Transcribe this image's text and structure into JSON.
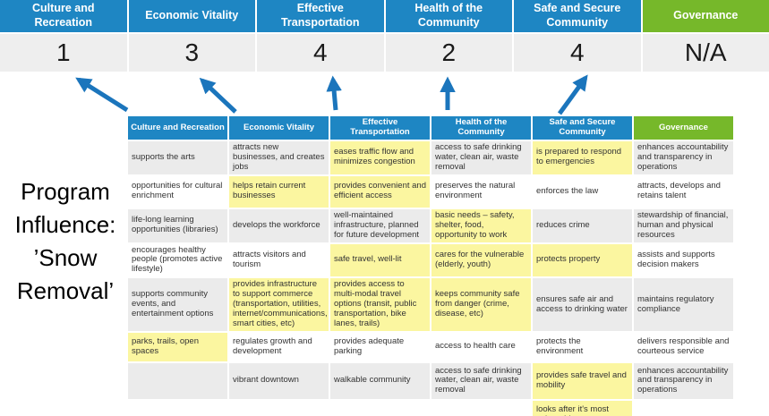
{
  "colors": {
    "header_blue": "#1e86c3",
    "header_green": "#76b82a",
    "arrow_blue": "#1b75bc",
    "highlight_yellow": "#fbf6a0",
    "row_band_gray": "#ebebeb",
    "score_bg": "#eeeeee"
  },
  "title": {
    "lines": [
      "Program",
      "Influence:",
      "’Snow",
      "Removal’"
    ]
  },
  "summary": {
    "columns": [
      {
        "id": "culture-and-recreation",
        "label": "Culture and Recreation",
        "score": "1",
        "theme": "blue"
      },
      {
        "id": "economic-vitality",
        "label": "Economic Vitality",
        "score": "3",
        "theme": "blue"
      },
      {
        "id": "effective-transportation",
        "label": "Effective Transportation",
        "score": "4",
        "theme": "blue"
      },
      {
        "id": "health-of-the-community",
        "label": "Health of the Community",
        "score": "2",
        "theme": "blue"
      },
      {
        "id": "safe-and-secure-community",
        "label": "Safe and Secure Community",
        "score": "4",
        "theme": "blue"
      },
      {
        "id": "governance",
        "label": "Governance",
        "score": "N/A",
        "theme": "green"
      }
    ]
  },
  "matrix": {
    "headers": [
      {
        "id": "culture-and-recreation",
        "label": "Culture and Recreation",
        "theme": "blue"
      },
      {
        "id": "economic-vitality",
        "label": "Economic Vitality",
        "theme": "blue"
      },
      {
        "id": "effective-transportation",
        "label": "Effective Transportation",
        "theme": "blue"
      },
      {
        "id": "health-of-the-community",
        "label": "Health of the Community",
        "theme": "blue"
      },
      {
        "id": "safe-and-secure-community",
        "label": "Safe and Secure Community",
        "theme": "blue"
      },
      {
        "id": "governance",
        "label": "Governance",
        "theme": "green"
      }
    ],
    "rows": [
      [
        {
          "text": "supports the arts"
        },
        {
          "text": "attracts new businesses, and creates jobs"
        },
        {
          "text": "eases traffic flow and minimizes congestion",
          "highlight": true
        },
        {
          "text": "access to safe drinking water, clean air, waste removal"
        },
        {
          "text": "is prepared to respond to emergencies",
          "highlight": true
        },
        {
          "text": "enhances accountability and transparency in operations"
        }
      ],
      [
        {
          "text": "opportunities for cultural enrichment"
        },
        {
          "text": "helps retain current businesses",
          "highlight": true
        },
        {
          "text": "provides convenient and efficient access",
          "highlight": true
        },
        {
          "text": "preserves the natural environment"
        },
        {
          "text": "enforces the law"
        },
        {
          "text": "attracts, develops and retains talent"
        }
      ],
      [
        {
          "text": "life-long learning opportunities (libraries)"
        },
        {
          "text": "develops the workforce"
        },
        {
          "text": "well-maintained infrastructure, planned for future development"
        },
        {
          "text": "basic needs – safety, shelter, food, opportunity to work",
          "highlight": true
        },
        {
          "text": "reduces crime"
        },
        {
          "text": "stewardship of financial, human and physical resources"
        }
      ],
      [
        {
          "text": "encourages healthy people (promotes active lifestyle)"
        },
        {
          "text": "attracts visitors and tourism"
        },
        {
          "text": "safe travel, well-lit",
          "highlight": true
        },
        {
          "text": "cares for the vulnerable (elderly, youth)",
          "highlight": true
        },
        {
          "text": "protects property",
          "highlight": true
        },
        {
          "text": "assists and supports decision makers"
        }
      ],
      [
        {
          "text": "supports community events, and entertainment options"
        },
        {
          "text": "provides infrastructure to support commerce (transportation, utilities, internet/communications, smart cities, etc)",
          "highlight": true
        },
        {
          "text": "provides access to multi-modal travel options (transit, public transportation, bike lanes, trails)",
          "highlight": true
        },
        {
          "text": "keeps community safe from danger (crime, disease, etc)",
          "highlight": true
        },
        {
          "text": "ensures safe air and access to drinking water"
        },
        {
          "text": "maintains regulatory compliance"
        }
      ],
      [
        {
          "text": "parks, trails, open spaces",
          "highlight": true
        },
        {
          "text": "regulates growth and development"
        },
        {
          "text": "provides adequate parking"
        },
        {
          "text": "access to health care"
        },
        {
          "text": "protects the environment"
        },
        {
          "text": "delivers responsible and courteous service"
        }
      ],
      [
        {
          "text": ""
        },
        {
          "text": "vibrant downtown"
        },
        {
          "text": "walkable community"
        },
        {
          "text": "access to safe drinking water, clean air, waste removal"
        },
        {
          "text": "provides safe travel and mobility",
          "highlight": true
        },
        {
          "text": "enhances accountability and transparency in operations"
        }
      ],
      [
        {
          "text": ""
        },
        {
          "text": ""
        },
        {
          "text": ""
        },
        {
          "text": ""
        },
        {
          "text": "looks after it's most vulnerable",
          "highlight": true
        },
        {
          "text": ""
        }
      ]
    ]
  }
}
